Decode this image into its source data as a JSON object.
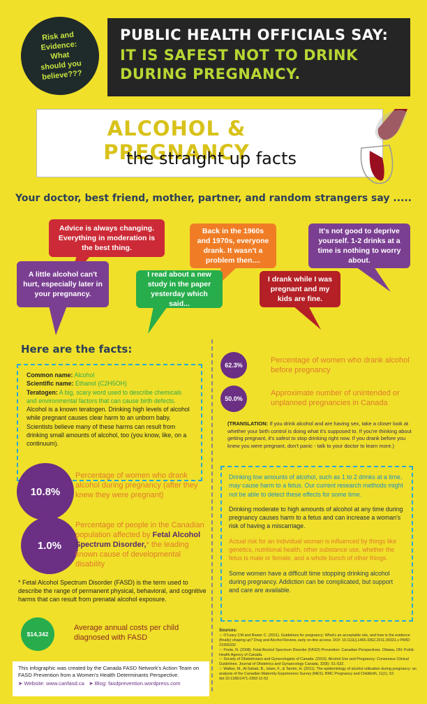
{
  "badge": {
    "text": "Risk and\nEvidence:\nWhat\nshould you\nbelieve???"
  },
  "headline": {
    "line1": "PUBLIC HEALTH OFFICIALS SAY:",
    "line2": "IT IS SAFEST NOT TO DRINK DURING PREGNANCY."
  },
  "title": {
    "main": "ALCOHOL & PREGNANCY",
    "sub": "the straight up facts"
  },
  "intro": "Your doctor, best friend, mother, partner, and random strangers say .....",
  "bubbles": [
    {
      "text": "Advice is always changing. Everything in moderation is the best thing.",
      "color": "#cc2a36"
    },
    {
      "text": "A little alcohol can't hurt, especially later in your pregnancy.",
      "color": "#7b3f92"
    },
    {
      "text": "I read about a new study in the paper yesterday which said...",
      "color": "#27ad4c"
    },
    {
      "text": "Back in the 1960s and 1970s, everyone drank. It wasn't a problem then....",
      "color": "#f07d26"
    },
    {
      "text": "I drank while I was pregnant and my kids are fine.",
      "color": "#b42026"
    },
    {
      "text": "It's not good to deprive yourself. 1-2 drinks at a time is nothing to worry about.",
      "color": "#7b3f92"
    }
  ],
  "facts_heading": "Here are the facts:",
  "alcohol_box": {
    "common_label": "Common name:",
    "common_value": "Alcohol",
    "sci_label": "Scientific name:",
    "sci_value": "Ethanol (C2H5OH)",
    "terat_label": "Teratogen:",
    "terat_value": "A big, scary word used to describe chemicals and environmental factors that can cause birth defects.",
    "body": "Alcohol is a known teratogen. Drinking high levels of alcohol while pregnant causes clear harm to an unborn baby. Scientists believe many of these harms can result from drinking small amounts of alcohol, too (you know, like, on a continuum)."
  },
  "stats": {
    "s1": {
      "value": "10.8%",
      "text": "Percentage of women who drank alcohol during pregnancy (after they knew they were pregnant)"
    },
    "s2": {
      "value": "1.0%",
      "text_a": "Percentage of people in the Canadian population affected by",
      "text_b": "Fetal Alcohol Spectrum Disorder,",
      "text_c": "* the leading known cause of developmental disability"
    },
    "s3": {
      "value": "$14,342",
      "text": "Average annual costs per child diagnosed with FASD"
    },
    "s4": {
      "value": "62.3%",
      "text": "Percentage of women who drank alcohol before pregnancy"
    },
    "s5": {
      "value": "50.0%",
      "text": "Approximate number of unintended or unplanned pregnancies in Canada"
    }
  },
  "fasd_note": "* Fetal Alcohol Spectrum Disorder (FASD) is the term used to describe the range of permanent physical, behavioral, and cognitive harms that can result from prenatal alcohol exposure.",
  "translation": {
    "label": "(TRANSLATION:",
    "body": "If you drink alcohol and are having sex, take a closer look at whether your birth control is doing what it's supposed to. If you're thinking about getting pregnant, it's safest to stop drinking right now. If you drank before you knew you were pregnant, don't panic - talk to your doctor to learn more.)"
  },
  "risk_box": {
    "p1a": "Drinking low amounts of alcohol, such as 1 to 2 drinks at a time,",
    "p1b": "may",
    "p1c": "cause harm to a fetus. Our current research methods might not be able to detect these effects for some time.",
    "p2": "Drinking moderate to high amounts of alcohol at any time during pregnancy causes harm to a fetus and can increase a woman's risk of having a miscarriage.",
    "p3": "Actual risk for an individual woman is influenced by things like genetics, nutritional health, other substance use, whether the fetus is male or female, and a whole bunch of other things.",
    "p4": "Some women have a difficult time stopping drinking alcohol during pregnancy. Addiction can be complicated, but support and care are available."
  },
  "credits": {
    "text": "This infographic was created by the Canada FASD Network's Action Team on FASD Prevention from a Women's Health Determinants Perspective.",
    "website": "Website: www.canfasd.ca",
    "blog": "Blog: fasdprevention.wordpress.com"
  },
  "sources": {
    "heading": "Sources:",
    "items": [
      "O'Leary CM and Bower C. (2011). Guidelines for pregnancy: What's an acceptable risk, and how is the evidence (finally) shaping up? Drug and Alcohol Review, early on-line access. DOI: 10.1111/j.1465-3362.2011.00331.x PMID: 21955332",
      "Poole, N. (2008). Fetal Alcohol Spectrum Disorder (FASD) Prevention: Canadian Perspectives. Ottawa, ON: Public Health Agency of Canada.",
      "Society of Obstetricians and Gynecologists of Canada. (2010). Alcohol Use and Pregnancy: Consensus Clinical Guidelines. Journal of Obstetrics and Gynaecology Canada, 32(8): S1-S32.",
      "Walker, M., Al-Sahab, B., Islam, F., & Tamim, H. (2011). The epidemiology of alcohol utilization during pregnancy: an analysis of the Canadian Maternity Experiences Survey (MES). BMC Pregnancy and Childbirth, 11(1), 52. doi:10.1186/1471-2393-11-52"
    ]
  },
  "colors": {
    "background": "#f0e02a",
    "purple": "#6b2f84",
    "orange": "#e07a2a",
    "green": "#27ad4c",
    "blue": "#29a9d6"
  }
}
